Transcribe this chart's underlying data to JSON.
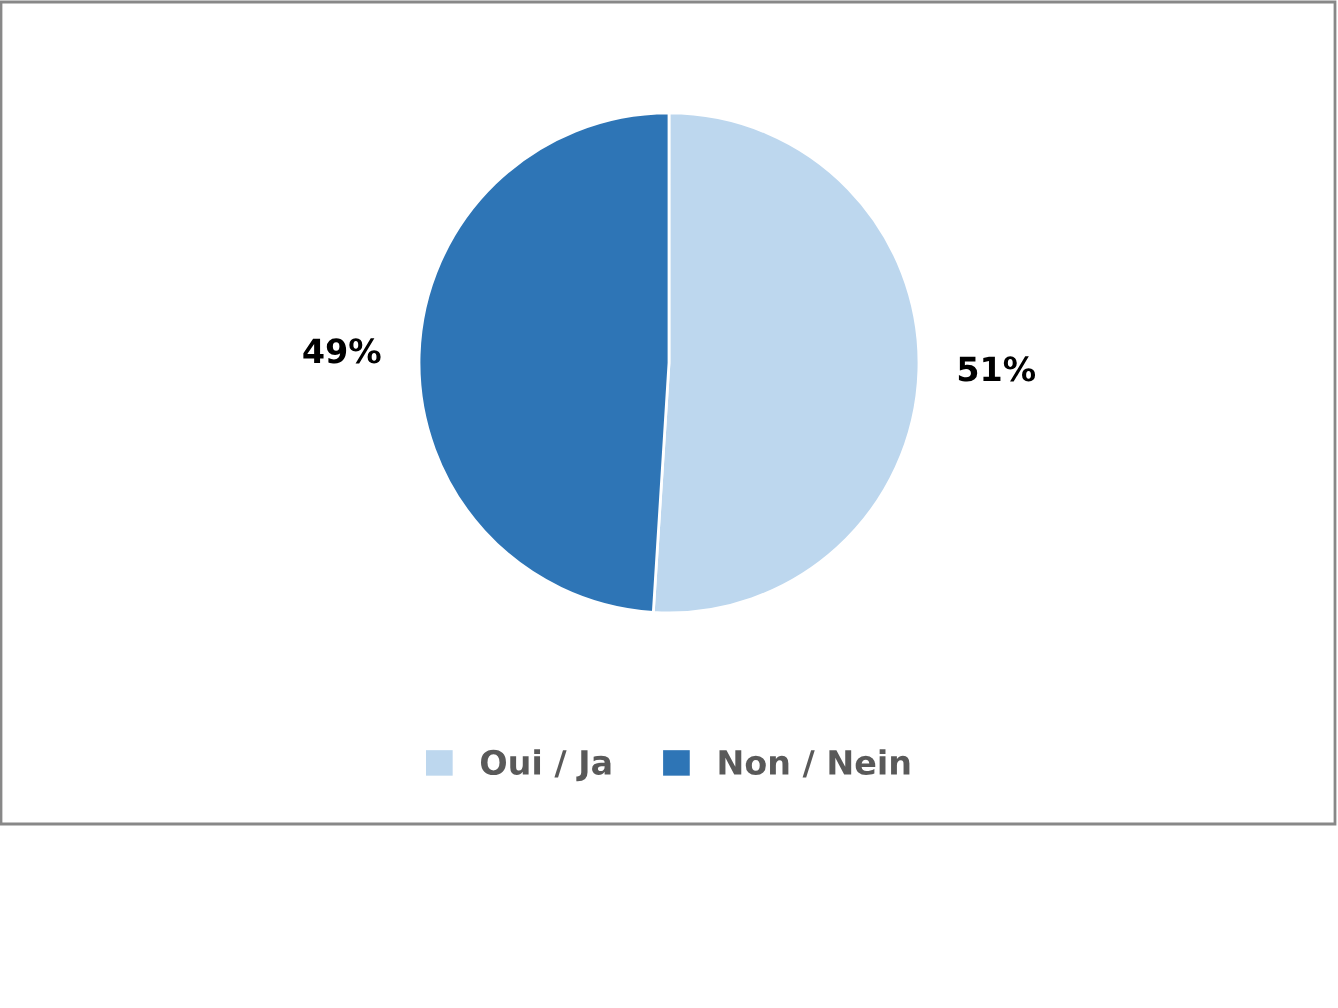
{
  "chart_data": {
    "type": "pie",
    "categories": [
      "Oui / Ja",
      "Non / Nein"
    ],
    "values": [
      51,
      49
    ],
    "colors": [
      "#bdd7ee",
      "#2e75b6"
    ],
    "value_labels": [
      "51%",
      "49%"
    ],
    "legend": "bottom"
  }
}
